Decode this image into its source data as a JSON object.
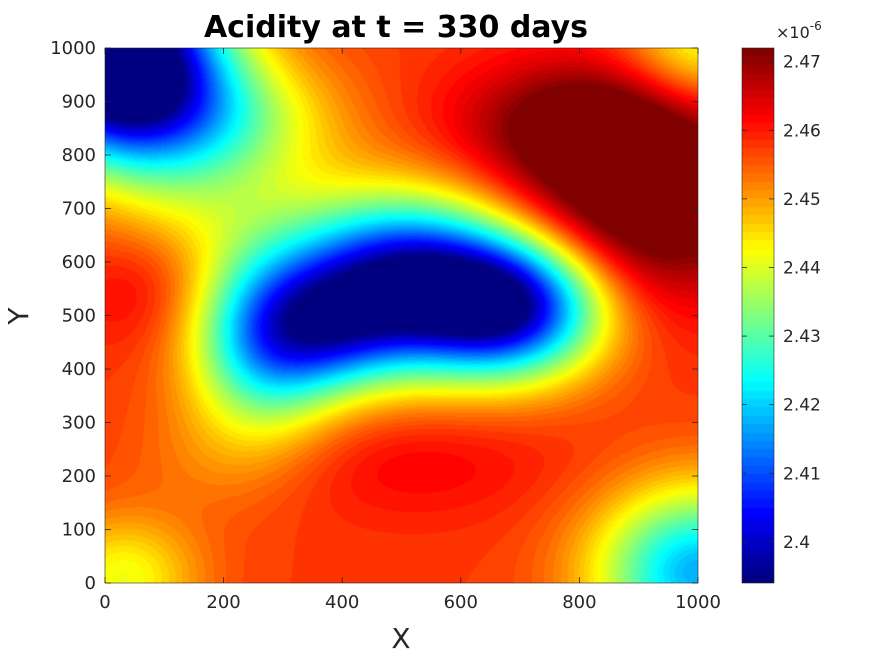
{
  "chart_data": {
    "type": "heatmap",
    "title": "Acidity at t = 330 days",
    "xlabel": "X",
    "ylabel": "Y",
    "xlim": [
      0,
      1000
    ],
    "ylim": [
      0,
      1000
    ],
    "x_ticks": [
      0,
      200,
      400,
      600,
      800,
      1000
    ],
    "y_ticks": [
      0,
      100,
      200,
      300,
      400,
      500,
      600,
      700,
      800,
      900,
      1000
    ],
    "colormap": "jet",
    "colorbar": {
      "multiplier": "×10",
      "exponent": "-6",
      "range": [
        2.394,
        2.472
      ],
      "ticks": [
        2.4,
        2.41,
        2.42,
        2.43,
        2.44,
        2.45,
        2.46,
        2.47
      ],
      "tick_labels": [
        "2.4",
        "2.41",
        "2.42",
        "2.43",
        "2.44",
        "2.45",
        "2.46",
        "2.47"
      ]
    },
    "base_value": 2.4575,
    "features": [
      {
        "x": 500,
        "y": 560,
        "amplitude": -0.06,
        "sx": 140,
        "sy": 110
      },
      {
        "x": 690,
        "y": 515,
        "amplitude": -0.05,
        "sx": 110,
        "sy": 90
      },
      {
        "x": 270,
        "y": 450,
        "amplitude": -0.034,
        "sx": 90,
        "sy": 120
      },
      {
        "x": 380,
        "y": 470,
        "amplitude": -0.02,
        "sx": 90,
        "sy": 80
      },
      {
        "x": 20,
        "y": 980,
        "amplitude": -0.08,
        "sx": 120,
        "sy": 120
      },
      {
        "x": 180,
        "y": 860,
        "amplitude": -0.022,
        "sx": 140,
        "sy": 90
      },
      {
        "x": 900,
        "y": 730,
        "amplitude": 0.024,
        "sx": 150,
        "sy": 140
      },
      {
        "x": 800,
        "y": 860,
        "amplitude": 0.012,
        "sx": 150,
        "sy": 80
      },
      {
        "x": 1000,
        "y": 20,
        "amplitude": -0.04,
        "sx": 120,
        "sy": 110
      },
      {
        "x": 30,
        "y": 10,
        "amplitude": -0.016,
        "sx": 90,
        "sy": 80
      },
      {
        "x": 1000,
        "y": 1000,
        "amplitude": -0.018,
        "sx": 90,
        "sy": 90
      },
      {
        "x": 520,
        "y": 230,
        "amplitude": 0.005,
        "sx": 170,
        "sy": 80
      },
      {
        "x": 60,
        "y": 550,
        "amplitude": 0.005,
        "sx": 80,
        "sy": 80
      },
      {
        "x": 160,
        "y": 700,
        "amplitude": -0.008,
        "sx": 120,
        "sy": 80
      },
      {
        "x": 180,
        "y": 230,
        "amplitude": -0.004,
        "sx": 100,
        "sy": 80
      }
    ]
  }
}
